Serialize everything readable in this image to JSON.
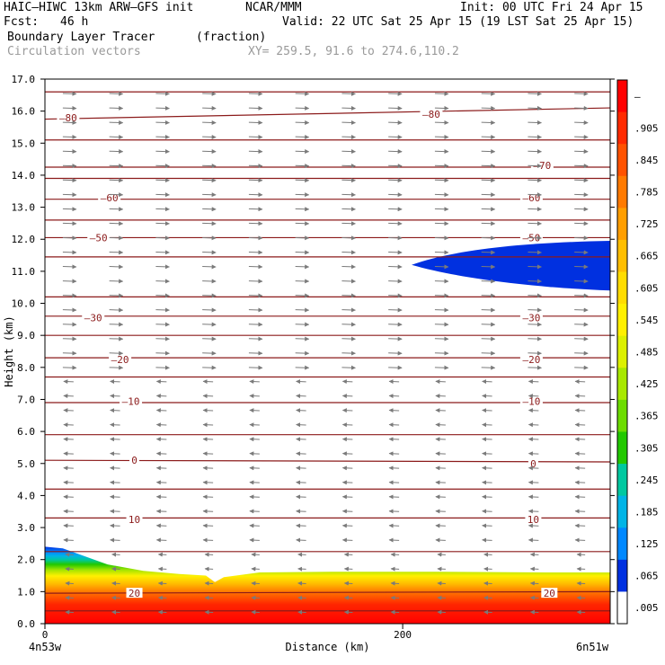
{
  "header": {
    "model": "HAIC–HIWC 13km ARW–GFS init",
    "org": "NCAR/MMM",
    "init": "Init: 00 UTC Fri 24 Apr 15",
    "fcst_label": "Fcst:",
    "fcst_value": "46 h",
    "valid": "Valid: 22 UTC Sat 25 Apr 15 (19 LST Sat 25 Apr 15)",
    "field": "Boundary Layer Tracer",
    "units": "(fraction)",
    "vectors": "Circulation vectors",
    "xy": "XY= 259.5, 91.6 to 274.6,110.2"
  },
  "chart_data": {
    "type": "heatmap",
    "title": "Boundary Layer Tracer",
    "ylabel": "Height (km)",
    "xlabel": "Distance (km)",
    "xlim": [
      0,
      316
    ],
    "ylim": [
      0,
      17
    ],
    "yticks": [
      "0.0",
      "1.0",
      "2.0",
      "3.0",
      "4.0",
      "5.0",
      "6.0",
      "7.0",
      "8.0",
      "9.0",
      "10.0",
      "11.0",
      "12.0",
      "13.0",
      "14.0",
      "15.0",
      "16.0",
      "17.0"
    ],
    "xticks": [
      {
        "value": 0,
        "label": "0"
      },
      {
        "value": 200,
        "label": "200"
      }
    ],
    "x_endpoints": {
      "left": "4n53w",
      "right": "6n51w"
    },
    "colorbar": {
      "labels": [
        "–",
        ".905",
        ".845",
        ".785",
        ".725",
        ".665",
        ".605",
        ".545",
        ".485",
        ".425",
        ".365",
        ".305",
        ".245",
        ".185",
        ".125",
        ".065",
        ".005"
      ],
      "colors": [
        "#ff0000",
        "#ff2a00",
        "#ff5200",
        "#ff7a00",
        "#ff9e00",
        "#ffbe00",
        "#ffdc00",
        "#fff000",
        "#dcf000",
        "#a8e800",
        "#6cdc00",
        "#22c800",
        "#00c8a0",
        "#00b4e6",
        "#0088ff",
        "#0030e0",
        "#ffffff"
      ]
    },
    "isotherms": [
      {
        "label": "–80",
        "y0": 15.75,
        "y1": 16.1,
        "label_at": [
          {
            "x": 13,
            "y": 15.8
          },
          {
            "x": 216,
            "y": 15.9
          }
        ]
      },
      {
        "label": "–70",
        "y0": 14.25,
        "y1": 14.25,
        "label_at": [
          {
            "x": 278,
            "y": 14.3
          }
        ]
      },
      {
        "label": "–60",
        "y0": 13.25,
        "y1": 13.25,
        "label_at": [
          {
            "x": 36,
            "y": 13.3
          },
          {
            "x": 272,
            "y": 13.3
          }
        ]
      },
      {
        "label": "–50",
        "y0": 12.05,
        "y1": 12.05,
        "label_at": [
          {
            "x": 30,
            "y": 12.05
          },
          {
            "x": 272,
            "y": 12.05
          }
        ]
      },
      {
        "label": "–30",
        "y0": 9.6,
        "y1": 9.6,
        "label_at": [
          {
            "x": 27,
            "y": 9.55
          },
          {
            "x": 272,
            "y": 9.55
          }
        ]
      },
      {
        "label": "–20",
        "y0": 8.3,
        "y1": 8.3,
        "label_at": [
          {
            "x": 42,
            "y": 8.25
          },
          {
            "x": 272,
            "y": 8.25
          }
        ]
      },
      {
        "label": "–10",
        "y0": 6.9,
        "y1": 6.9,
        "label_at": [
          {
            "x": 48,
            "y": 6.95
          },
          {
            "x": 272,
            "y": 6.95
          }
        ]
      },
      {
        "label": "0",
        "y0": 5.1,
        "y1": 5.05,
        "label_at": [
          {
            "x": 50,
            "y": 5.1
          },
          {
            "x": 273,
            "y": 5.0
          }
        ]
      },
      {
        "label": "10",
        "y0": 3.3,
        "y1": 3.3,
        "label_at": [
          {
            "x": 50,
            "y": 3.25
          },
          {
            "x": 273,
            "y": 3.25
          }
        ]
      },
      {
        "label": "20",
        "y0": 0.95,
        "y1": 1.0,
        "label_at": [
          {
            "x": 50,
            "y": 0.95
          },
          {
            "x": 282,
            "y": 0.95
          }
        ]
      }
    ],
    "extra_isotherm_levels_km": [
      16.6,
      15.1,
      13.9,
      12.6,
      11.45,
      10.2,
      9.0,
      7.7,
      5.9,
      4.2,
      2.25,
      0.4
    ],
    "wind": {
      "upper_direction": "east",
      "lower_direction": "west",
      "reversal_height_km": 8.0
    }
  }
}
